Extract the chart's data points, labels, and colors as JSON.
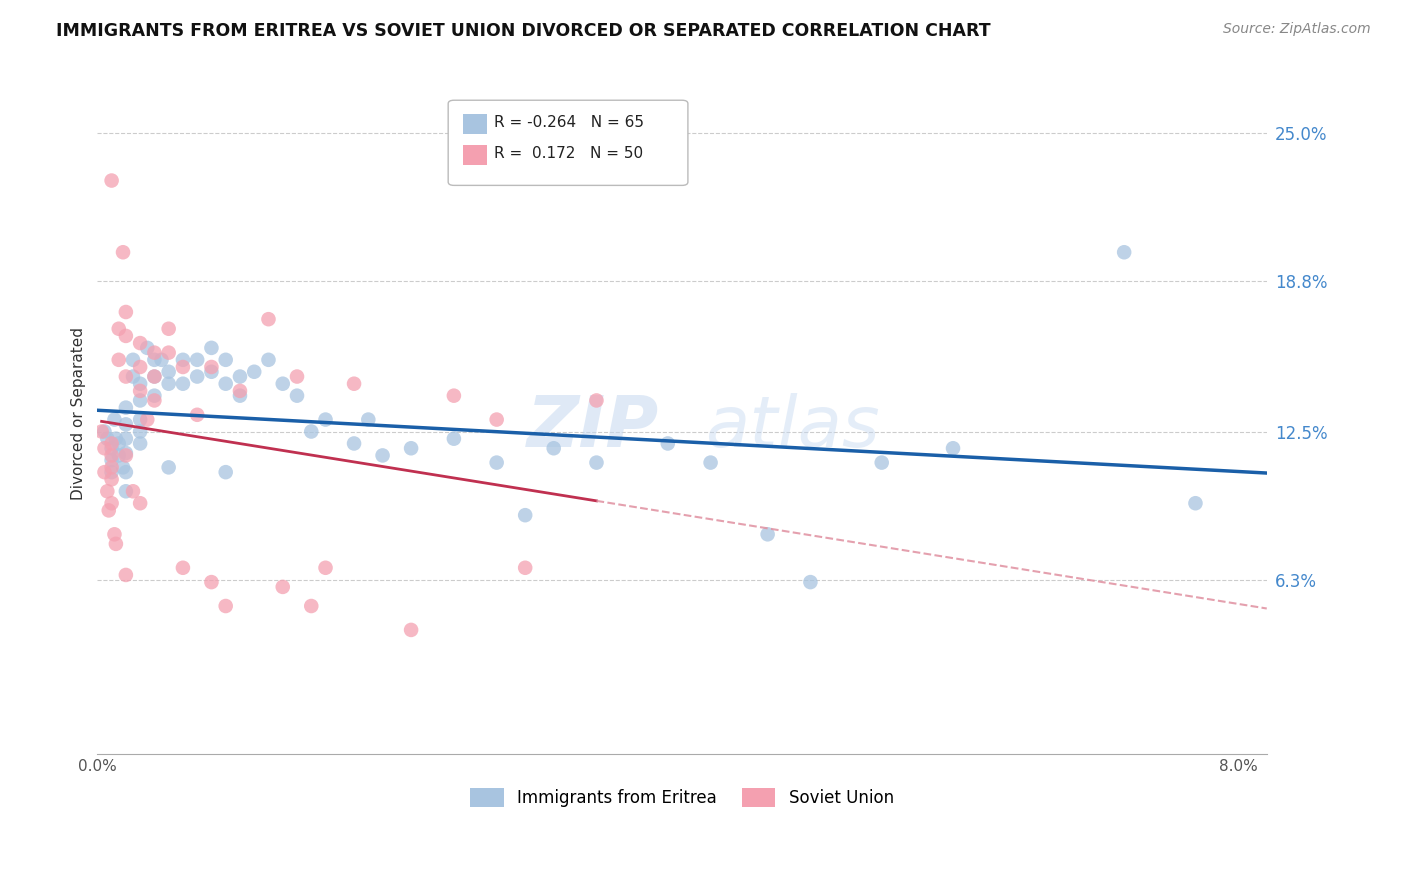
{
  "title": "IMMIGRANTS FROM ERITREA VS SOVIET UNION DIVORCED OR SEPARATED CORRELATION CHART",
  "source": "Source: ZipAtlas.com",
  "ylabel_label": "Divorced or Separated",
  "y_ticks": [
    0.063,
    0.125,
    0.188,
    0.25
  ],
  "y_tick_labels": [
    "6.3%",
    "12.5%",
    "18.8%",
    "25.0%"
  ],
  "legend_eritrea": "Immigrants from Eritrea",
  "legend_soviet": "Soviet Union",
  "r_eritrea": "-0.264",
  "n_eritrea": "65",
  "r_soviet": " 0.172",
  "n_soviet": "50",
  "eritrea_color": "#a8c4e0",
  "soviet_color": "#f4a0b0",
  "eritrea_line_color": "#1a5fa8",
  "soviet_line_color": "#c03050",
  "soviet_dashed_color": "#e090a0",
  "watermark_zip": "ZIP",
  "watermark_atlas": "atlas",
  "xlim": [
    0.0,
    0.082
  ],
  "ylim": [
    -0.01,
    0.275
  ],
  "figsize": [
    14.06,
    8.92
  ],
  "dpi": 100,
  "eritrea_x": [
    0.0005,
    0.0007,
    0.001,
    0.001,
    0.001,
    0.0012,
    0.0013,
    0.0015,
    0.0015,
    0.0018,
    0.002,
    0.002,
    0.002,
    0.002,
    0.002,
    0.002,
    0.0025,
    0.0025,
    0.003,
    0.003,
    0.003,
    0.003,
    0.003,
    0.0035,
    0.004,
    0.004,
    0.004,
    0.0045,
    0.005,
    0.005,
    0.005,
    0.006,
    0.006,
    0.007,
    0.007,
    0.008,
    0.008,
    0.009,
    0.009,
    0.009,
    0.01,
    0.01,
    0.011,
    0.012,
    0.013,
    0.014,
    0.015,
    0.016,
    0.018,
    0.019,
    0.02,
    0.022,
    0.025,
    0.028,
    0.03,
    0.032,
    0.035,
    0.04,
    0.043,
    0.047,
    0.05,
    0.055,
    0.06,
    0.072,
    0.077
  ],
  "eritrea_y": [
    0.125,
    0.122,
    0.118,
    0.113,
    0.108,
    0.13,
    0.122,
    0.12,
    0.115,
    0.11,
    0.135,
    0.128,
    0.122,
    0.116,
    0.108,
    0.1,
    0.155,
    0.148,
    0.145,
    0.138,
    0.13,
    0.125,
    0.12,
    0.16,
    0.155,
    0.148,
    0.14,
    0.155,
    0.15,
    0.145,
    0.11,
    0.155,
    0.145,
    0.155,
    0.148,
    0.16,
    0.15,
    0.155,
    0.145,
    0.108,
    0.148,
    0.14,
    0.15,
    0.155,
    0.145,
    0.14,
    0.125,
    0.13,
    0.12,
    0.13,
    0.115,
    0.118,
    0.122,
    0.112,
    0.09,
    0.118,
    0.112,
    0.12,
    0.112,
    0.082,
    0.062,
    0.112,
    0.118,
    0.2,
    0.095
  ],
  "soviet_x": [
    0.0003,
    0.0005,
    0.0005,
    0.0007,
    0.0008,
    0.001,
    0.001,
    0.001,
    0.001,
    0.001,
    0.001,
    0.0012,
    0.0013,
    0.0015,
    0.0015,
    0.0018,
    0.002,
    0.002,
    0.002,
    0.002,
    0.002,
    0.0025,
    0.003,
    0.003,
    0.003,
    0.003,
    0.0035,
    0.004,
    0.004,
    0.004,
    0.005,
    0.005,
    0.006,
    0.006,
    0.007,
    0.008,
    0.008,
    0.009,
    0.01,
    0.012,
    0.013,
    0.014,
    0.015,
    0.016,
    0.018,
    0.022,
    0.025,
    0.028,
    0.03,
    0.035
  ],
  "soviet_y": [
    0.125,
    0.118,
    0.108,
    0.1,
    0.092,
    0.12,
    0.115,
    0.11,
    0.105,
    0.095,
    0.23,
    0.082,
    0.078,
    0.168,
    0.155,
    0.2,
    0.175,
    0.165,
    0.148,
    0.115,
    0.065,
    0.1,
    0.162,
    0.152,
    0.142,
    0.095,
    0.13,
    0.158,
    0.148,
    0.138,
    0.168,
    0.158,
    0.152,
    0.068,
    0.132,
    0.152,
    0.062,
    0.052,
    0.142,
    0.172,
    0.06,
    0.148,
    0.052,
    0.068,
    0.145,
    0.042,
    0.14,
    0.13,
    0.068,
    0.138
  ]
}
